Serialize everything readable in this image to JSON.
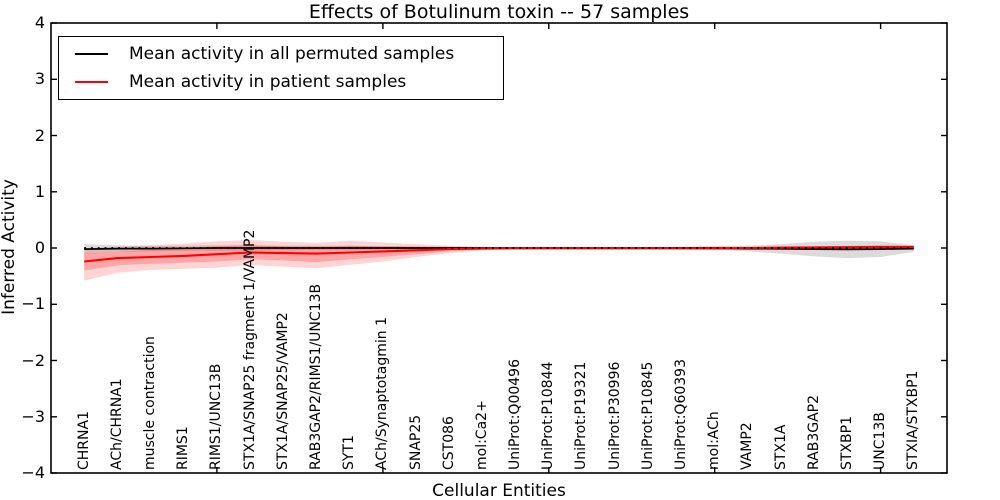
{
  "window": {
    "title": "Effects of Botulinum toxin -- 57 samples"
  },
  "legend": {
    "items": [
      {
        "label": "Mean activity in all permuted samples",
        "color": "#000000"
      },
      {
        "label": "Mean activity in patient samples",
        "color": "#ff0000"
      }
    ]
  },
  "chart_data": {
    "type": "line",
    "title": "Effects of Botulinum toxin -- 57 samples",
    "xlabel": "Cellular Entities",
    "ylabel": "Inferred Activity",
    "ylim": [
      -4,
      4
    ],
    "xlim": [
      0,
      27
    ],
    "yticks": [
      -4,
      -3,
      -2,
      -1,
      0,
      1,
      2,
      3,
      4
    ],
    "xtick_positions": [
      5,
      10,
      15,
      20,
      25
    ],
    "grid": false,
    "legend_position": "upper left",
    "x_label_rotation": 90,
    "categories": [
      "CHRNA1",
      "ACh/CHRNA1",
      "muscle contraction",
      "RIMS1",
      "RIMS1/UNC13B",
      "STX1A/SNAP25 fragment 1/VAMP2",
      "STX1A/SNAP25/VAMP2",
      "RAB3GAP2/RIMS1/UNC13B",
      "SYT1",
      "ACh/Synaptotagmin 1",
      "SNAP25",
      "CST086",
      "mol:Ca2+",
      "UniProt:Q00496",
      "UniProt:P10844",
      "UniProt:P19321",
      "UniProt:P30996",
      "UniProt:P10845",
      "UniProt:Q60393",
      "mol:ACh",
      "VAMP2",
      "STX1A",
      "RAB3GAP2",
      "STXBP1",
      "UNC13B",
      "STXIA/STXBP1"
    ],
    "series": [
      {
        "name": "Mean activity in all permuted samples",
        "color": "#000000",
        "values": [
          -0.02,
          -0.01,
          -0.01,
          -0.005,
          0,
          0,
          0,
          0,
          0,
          0,
          0,
          0,
          0,
          0,
          0,
          0,
          0,
          0,
          0,
          0,
          -0.01,
          -0.015,
          -0.02,
          -0.025,
          -0.02,
          -0.01
        ]
      },
      {
        "name": "Mean activity in patient samples",
        "color": "#ff0000",
        "values": [
          -0.24,
          -0.18,
          -0.16,
          -0.14,
          -0.11,
          -0.08,
          -0.09,
          -0.1,
          -0.08,
          -0.06,
          -0.04,
          -0.02,
          -0.01,
          -0.005,
          -0.005,
          -0.005,
          -0.005,
          -0.005,
          -0.005,
          -0.005,
          0.0,
          0.005,
          0.01,
          0.015,
          0.02,
          0.02
        ]
      }
    ],
    "bands": [
      {
        "name": "permuted-samples-range",
        "color": "rgba(0,0,0,0.14)",
        "upper": [
          0.07,
          0.05,
          0.04,
          0.04,
          0.05,
          0.05,
          0.04,
          0.04,
          0.04,
          0.03,
          0.03,
          0.025,
          0.02,
          0.015,
          0.015,
          0.015,
          0.015,
          0.015,
          0.02,
          0.025,
          0.04,
          0.07,
          0.11,
          0.13,
          0.12,
          0.05
        ],
        "lower": [
          -0.11,
          -0.07,
          -0.06,
          -0.05,
          -0.05,
          -0.05,
          -0.04,
          -0.04,
          -0.04,
          -0.03,
          -0.03,
          -0.025,
          -0.02,
          -0.015,
          -0.015,
          -0.015,
          -0.015,
          -0.015,
          -0.02,
          -0.03,
          -0.06,
          -0.1,
          -0.15,
          -0.18,
          -0.16,
          -0.07
        ]
      },
      {
        "name": "patient-samples-outer-range",
        "color": "rgba(255,0,0,0.17)",
        "upper": [
          -0.01,
          0.02,
          0.05,
          0.08,
          0.12,
          0.14,
          0.11,
          0.09,
          0.13,
          0.1,
          0.07,
          0.04,
          0.02,
          0.01,
          0.01,
          0.01,
          0.01,
          0.01,
          0.02,
          0.03,
          0.02,
          0.03,
          0.03,
          0.04,
          0.05,
          0.04
        ],
        "lower": [
          -0.58,
          -0.44,
          -0.39,
          -0.37,
          -0.35,
          -0.3,
          -0.33,
          -0.36,
          -0.3,
          -0.24,
          -0.16,
          -0.09,
          -0.04,
          -0.025,
          -0.025,
          -0.025,
          -0.025,
          -0.025,
          -0.03,
          -0.04,
          -0.03,
          -0.03,
          -0.03,
          -0.025,
          -0.02,
          -0.02
        ]
      },
      {
        "name": "patient-samples-inner-range",
        "color": "rgba(255,0,0,0.22)",
        "upper": [
          -0.1,
          -0.07,
          -0.03,
          0.0,
          0.03,
          0.05,
          0.03,
          0.02,
          0.04,
          0.03,
          0.02,
          0.01,
          0.005,
          0.003,
          0.003,
          0.003,
          0.003,
          0.003,
          0.005,
          0.01,
          0.01,
          0.015,
          0.015,
          0.02,
          0.03,
          0.03
        ],
        "lower": [
          -0.4,
          -0.31,
          -0.28,
          -0.26,
          -0.24,
          -0.2,
          -0.22,
          -0.25,
          -0.2,
          -0.16,
          -0.11,
          -0.055,
          -0.025,
          -0.015,
          -0.015,
          -0.015,
          -0.015,
          -0.015,
          -0.02,
          -0.025,
          -0.02,
          -0.02,
          -0.02,
          -0.02,
          -0.01,
          -0.01
        ]
      }
    ],
    "zero_line": {
      "y": 0,
      "style": "dotted",
      "color": "#000000"
    }
  }
}
